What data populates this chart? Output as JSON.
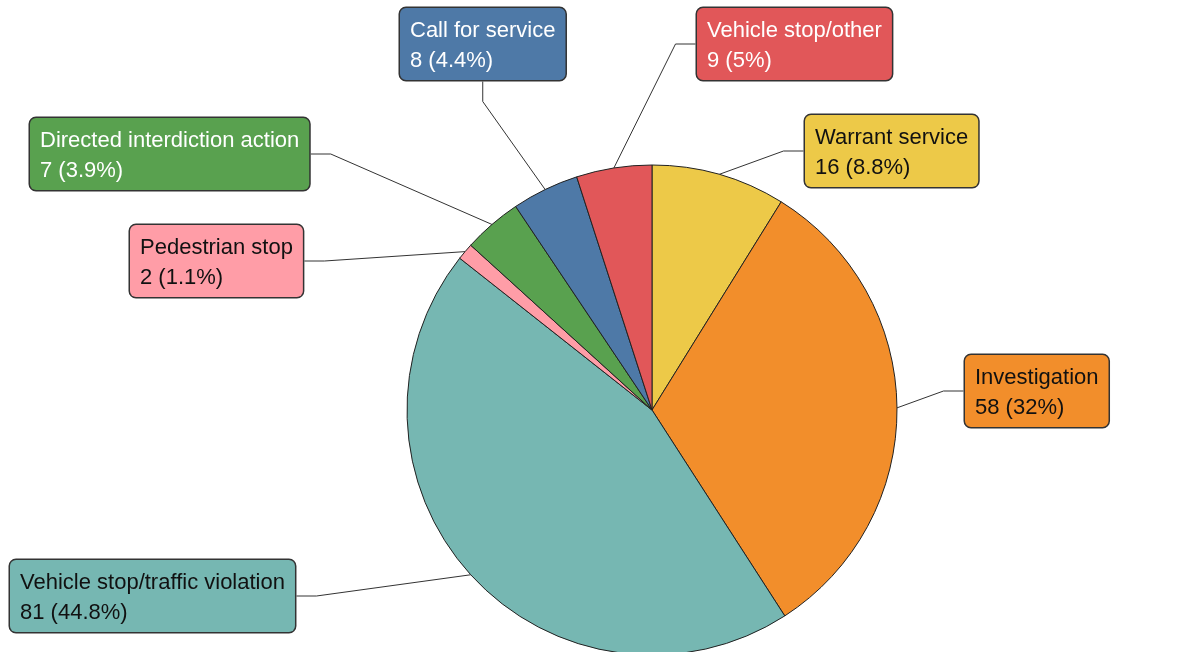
{
  "chart_data": {
    "type": "pie",
    "categories": [
      "Warrant service",
      "Investigation",
      "Vehicle stop/traffic violation",
      "Pedestrian stop",
      "Directed interdiction action",
      "Call for service",
      "Vehicle stop/other"
    ],
    "values": [
      16,
      58,
      81,
      2,
      7,
      8,
      9
    ],
    "value_labels": [
      "16 (8.8%)",
      "58 (32%)",
      "81 (44.8%)",
      "2 (1.1%)",
      "7 (3.9%)",
      "8 (4.4%)",
      "9 (5%)"
    ],
    "colors": [
      "#edc948",
      "#f28e2b",
      "#76b7b2",
      "#ff9da7",
      "#59a14f",
      "#4e79a7",
      "#e15759"
    ],
    "legend": false
  }
}
